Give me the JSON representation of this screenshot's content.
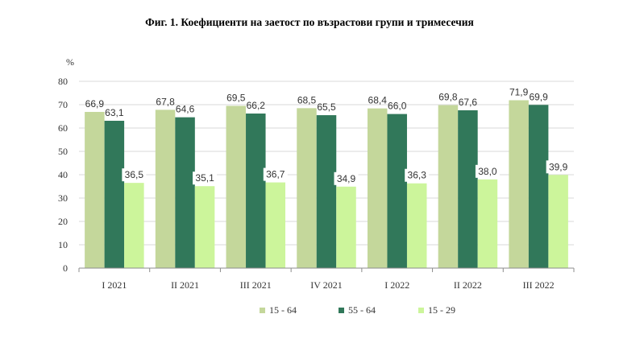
{
  "chart_data": {
    "type": "bar",
    "title": "Фиг. 1. Коефициенти на заетост по възрастови групи и тримесечия",
    "ylabel": "%",
    "ylim": [
      0,
      80
    ],
    "yticks": [
      "0",
      "10",
      "20",
      "30",
      "40",
      "50",
      "60",
      "70",
      "80"
    ],
    "grid": true,
    "legend_position": "bottom",
    "categories": [
      "I 2021",
      "II 2021",
      "III 2021",
      "IV 2021",
      "I 2022",
      "II 2022",
      "III 2022"
    ],
    "series": [
      {
        "name": "15 - 64",
        "color": "#c4d79b",
        "values": [
          66.9,
          67.8,
          69.5,
          68.5,
          68.4,
          69.8,
          71.9
        ],
        "labels": [
          "66,9",
          "67,8",
          "69,5",
          "68,5",
          "68,4",
          "69,8",
          "71,9"
        ]
      },
      {
        "name": "55 - 64",
        "color": "#31785a",
        "values": [
          63.1,
          64.6,
          66.2,
          65.5,
          66.0,
          67.6,
          69.9
        ],
        "labels": [
          "63,1",
          "64,6",
          "66,2",
          "65,5",
          "66,0",
          "67,6",
          "69,9"
        ]
      },
      {
        "name": "15 - 29",
        "color": "#ccf59b",
        "values": [
          36.5,
          35.1,
          36.7,
          34.9,
          36.3,
          38.0,
          39.9
        ],
        "labels": [
          "36,5",
          "35,1",
          "36,7",
          "34,9",
          "36,3",
          "38,0",
          "39,9"
        ]
      }
    ]
  }
}
